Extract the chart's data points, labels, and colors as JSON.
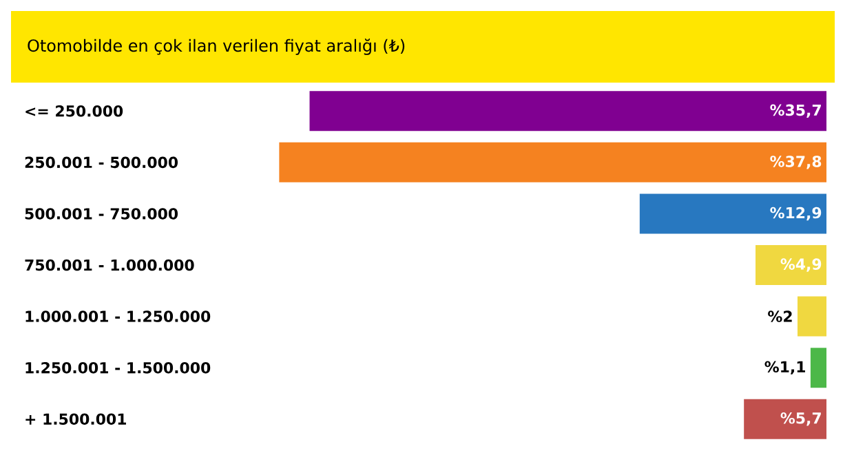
{
  "chart_data": {
    "type": "bar",
    "orientation": "horizontal",
    "title": "Otomobilde en çok ilan verilen fiyat aralığı (₺)",
    "categories": [
      "<= 250.000",
      "250.001 - 500.000",
      "500.001 - 750.000",
      "750.001 - 1.000.000",
      "1.000.001 - 1.250.000",
      "1.250.001 - 1.500.000",
      "+ 1.500.001"
    ],
    "values": [
      35.7,
      37.8,
      12.9,
      4.9,
      2,
      1.1,
      5.7
    ],
    "colors": [
      "#800091",
      "#f58220",
      "#2878c0",
      "#f0d840",
      "#f0d840",
      "#4cb848",
      "#c0504d"
    ],
    "value_labels": [
      "%35,7",
      "%37,8",
      "%12,9",
      "%4,9",
      "%2",
      "%1,1",
      "%5,7"
    ]
  }
}
